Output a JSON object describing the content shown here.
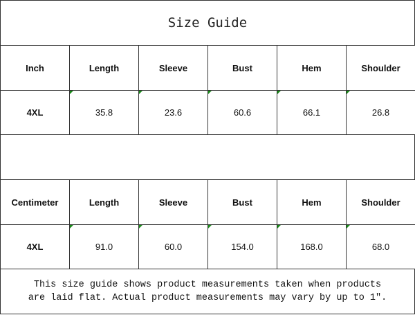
{
  "title": "Size Guide",
  "tables": [
    {
      "unit": "Inch",
      "headers": [
        "Length",
        "Sleeve",
        "Bust",
        "Hem",
        "Shoulder"
      ],
      "size": "4XL",
      "values": [
        "35.8",
        "23.6",
        "60.6",
        "66.1",
        "26.8"
      ]
    },
    {
      "unit": "Centimeter",
      "headers": [
        "Length",
        "Sleeve",
        "Bust",
        "Hem",
        "Shoulder"
      ],
      "size": "4XL",
      "values": [
        "91.0",
        "60.0",
        "154.0",
        "168.0",
        "68.0"
      ]
    }
  ],
  "note": {
    "line1": "This size guide shows product measurements taken when products",
    "line2": "are laid flat. Actual product measurements may vary by up to 1″."
  },
  "colors": {
    "border": "#333333",
    "comment_marker": "#1a8a1a"
  }
}
